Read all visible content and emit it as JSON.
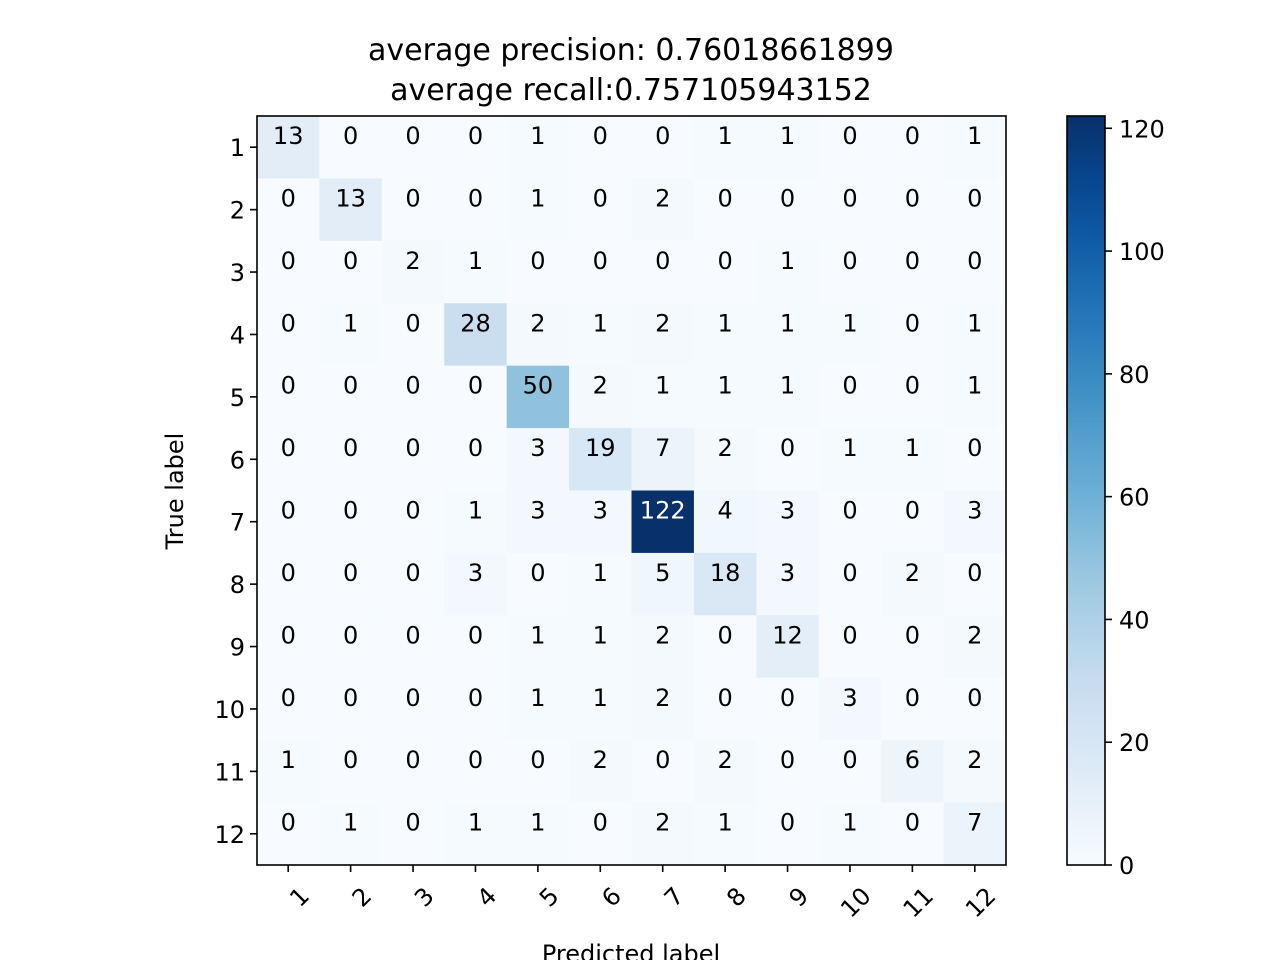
{
  "chart_data": {
    "type": "heatmap",
    "title_line1": "average precision: 0.76018661899",
    "title_line2": "average recall:0.757105943152",
    "xlabel": "Predicted label",
    "ylabel": "True label",
    "x_categories": [
      "1",
      "2",
      "3",
      "4",
      "5",
      "6",
      "7",
      "8",
      "9",
      "10",
      "11",
      "12"
    ],
    "y_categories": [
      "1",
      "2",
      "3",
      "4",
      "5",
      "6",
      "7",
      "8",
      "9",
      "10",
      "11",
      "12"
    ],
    "matrix": [
      [
        13,
        0,
        0,
        0,
        1,
        0,
        0,
        1,
        1,
        0,
        0,
        1
      ],
      [
        0,
        13,
        0,
        0,
        1,
        0,
        2,
        0,
        0,
        0,
        0,
        0
      ],
      [
        0,
        0,
        2,
        1,
        0,
        0,
        0,
        0,
        1,
        0,
        0,
        0
      ],
      [
        0,
        1,
        0,
        28,
        2,
        1,
        2,
        1,
        1,
        1,
        0,
        1
      ],
      [
        0,
        0,
        0,
        0,
        50,
        2,
        1,
        1,
        1,
        0,
        0,
        1
      ],
      [
        0,
        0,
        0,
        0,
        3,
        19,
        7,
        2,
        0,
        1,
        1,
        0
      ],
      [
        0,
        0,
        0,
        1,
        3,
        3,
        122,
        4,
        3,
        0,
        0,
        3
      ],
      [
        0,
        0,
        0,
        3,
        0,
        1,
        5,
        18,
        3,
        0,
        2,
        0
      ],
      [
        0,
        0,
        0,
        0,
        1,
        1,
        2,
        0,
        12,
        0,
        0,
        2
      ],
      [
        0,
        0,
        0,
        0,
        1,
        1,
        2,
        0,
        0,
        3,
        0,
        0
      ],
      [
        1,
        0,
        0,
        0,
        0,
        2,
        0,
        2,
        0,
        0,
        6,
        2
      ],
      [
        0,
        1,
        0,
        1,
        1,
        0,
        2,
        1,
        0,
        1,
        0,
        7
      ]
    ],
    "colormap": "Blues",
    "color_range": [
      0,
      122
    ],
    "colorbar_ticks": [
      0,
      20,
      40,
      60,
      80,
      100,
      120
    ],
    "colorbar_tick_labels": [
      "0",
      "20",
      "40",
      "60",
      "80",
      "100",
      "120"
    ],
    "x_tick_rotation_deg": 45
  }
}
